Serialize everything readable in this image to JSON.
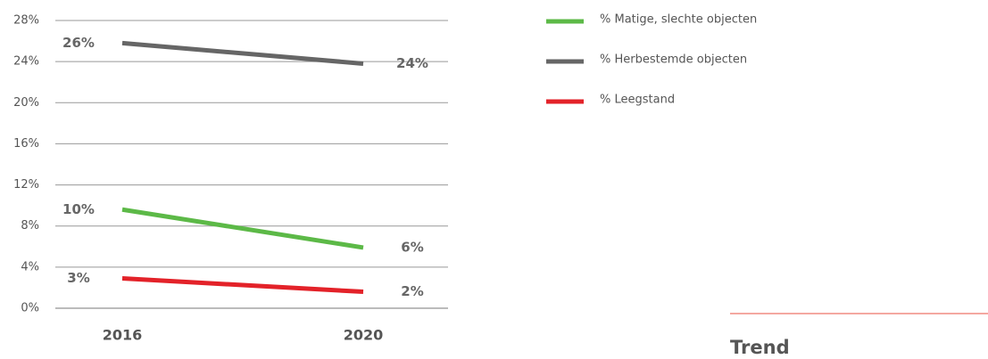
{
  "chart_data": {
    "type": "line",
    "categories": [
      "2016",
      "2020"
    ],
    "series": [
      {
        "name": "% Matige, slechte objecten",
        "color": "#5cb947",
        "values": [
          9.6,
          5.9
        ],
        "value_labels": [
          "10%",
          "6%"
        ]
      },
      {
        "name": "% Herbestemde objecten",
        "color": "#666666",
        "values": [
          25.8,
          23.8
        ],
        "value_labels": [
          "26%",
          "24%"
        ]
      },
      {
        "name": "% Leegstand",
        "color": "#e32229",
        "values": [
          2.9,
          1.6
        ],
        "value_labels": [
          "3%",
          "2%"
        ]
      }
    ],
    "ylim": [
      0,
      28
    ],
    "yticks": [
      {
        "value": 0,
        "label": "0%"
      },
      {
        "value": 4,
        "label": "4%"
      },
      {
        "value": 8,
        "label": "8%"
      },
      {
        "value": 12,
        "label": "12%"
      },
      {
        "value": 16,
        "label": "16%"
      },
      {
        "value": 20,
        "label": "20%"
      },
      {
        "value": 24,
        "label": "24%"
      },
      {
        "value": 28,
        "label": "28%"
      }
    ],
    "grid": true
  },
  "footer": {
    "title": "Trend"
  }
}
